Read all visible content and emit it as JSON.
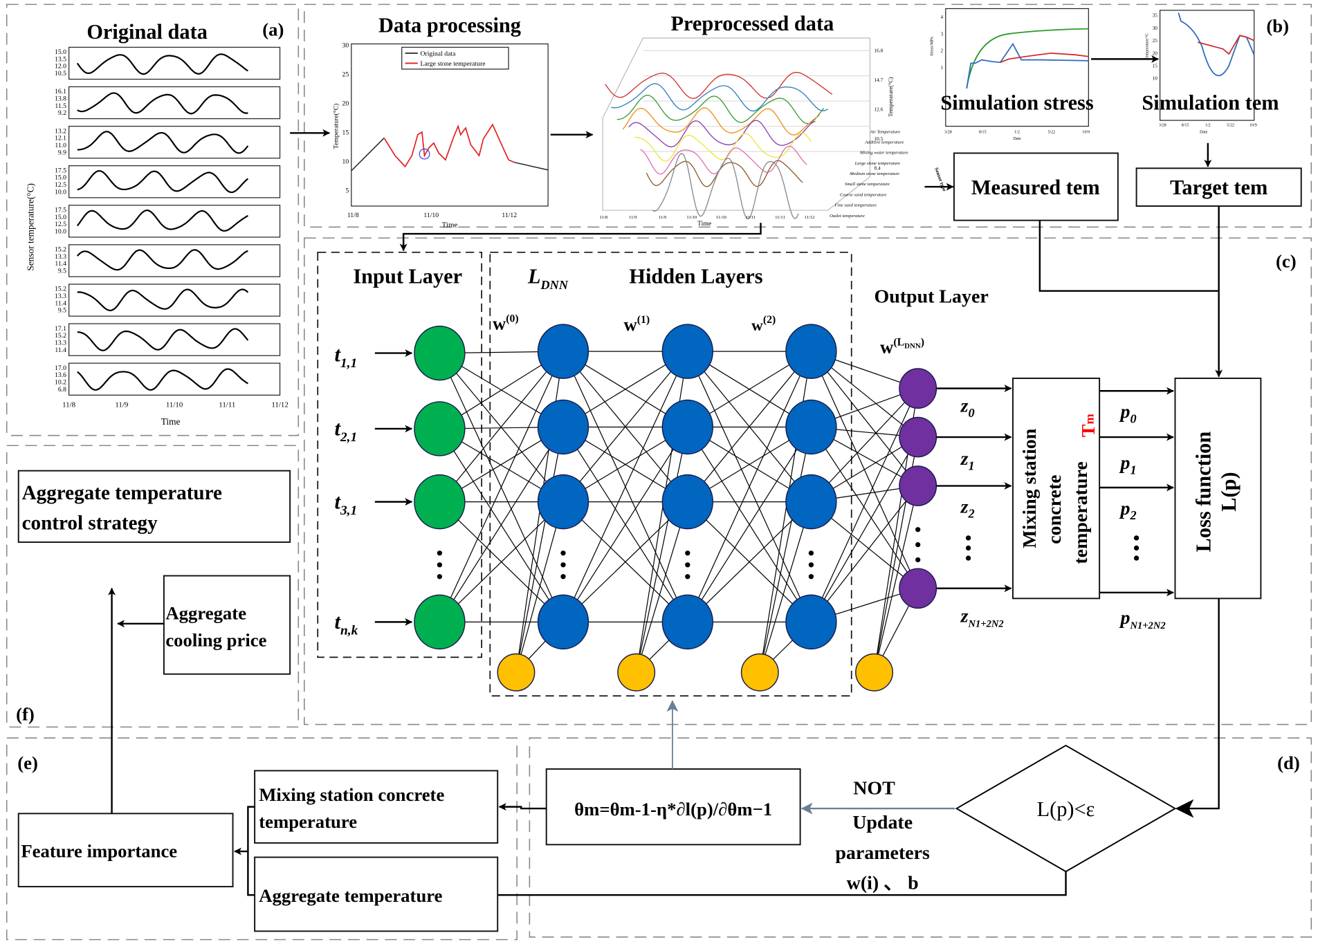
{
  "panels": {
    "a": "(a)",
    "b": "(b)",
    "c": "(c)",
    "d": "(d)",
    "e": "(e)",
    "f": "(f)"
  },
  "original_data": {
    "title": "Original data",
    "ylabel": "Sensor temperature(°C)",
    "xlabel": "Time",
    "xticks": [
      "11/8",
      "11/9",
      "11/10",
      "11/11",
      "11/12"
    ],
    "plots_yticks": [
      [
        "15.0",
        "13.5",
        "12.0",
        "10.5"
      ],
      [
        "16.1",
        "13.8",
        "11.5",
        "9.2"
      ],
      [
        "13.2",
        "12.1",
        "11.0",
        "9.9"
      ],
      [
        "17.5",
        "15.0",
        "12.5",
        "10.0"
      ],
      [
        "17.5",
        "15.0",
        "12.5",
        "10.0"
      ],
      [
        "15.2",
        "13.3",
        "11.4",
        "9.5"
      ],
      [
        "15.2",
        "13.3",
        "11.4",
        "9.5"
      ],
      [
        "17.1",
        "15.2",
        "13.3",
        "11.4"
      ],
      [
        "17.0",
        "13.6",
        "10.2",
        "6.8"
      ]
    ]
  },
  "data_processing": {
    "title": "Data processing",
    "ylabel": "Temperature(°C)",
    "xlabel": "Time",
    "yticks": [
      "30",
      "25",
      "20",
      "15",
      "10",
      "5"
    ],
    "xticks": [
      "11/8",
      "11/10",
      "11/12"
    ],
    "legend": [
      "Original data",
      "Large stone temperature"
    ],
    "colors": {
      "original": "#222222",
      "large_stone": "#e02020",
      "marker": "#3a3adf"
    }
  },
  "preprocessed": {
    "title": "Preprocessed data",
    "zlabel": "Temperature(°C)",
    "xlabel": "Time",
    "zticks": [
      "16.8",
      "14.7",
      "12.6",
      "10.5",
      "8.4"
    ],
    "xticks": [
      "11/8",
      "11/9",
      "11/9",
      "11/10",
      "11/10",
      "11/11",
      "11/11",
      "11/12"
    ],
    "sensor_axis": "Sensor type",
    "sensors": [
      "Air Temperature",
      "Additive temperature",
      "Mixing water temperature",
      "Large stone temperature",
      "Medium stone temperature",
      "Small stone temperature",
      "Coarse sand temperature",
      "Fine sand temperature",
      "Outlet temperature"
    ],
    "colors": [
      "#d03030",
      "#2f7fc0",
      "#3a9a3a",
      "#f08c1a",
      "#8b3fb0",
      "#e8e83a",
      "#e070b0",
      "#8a5a30",
      "#888888"
    ]
  },
  "simulation": {
    "stress_title": "Simulation stress",
    "stress_ylabel": "Stress/MPa",
    "stress_yticks": [
      "4",
      "3",
      "2",
      "1"
    ],
    "tem_title": "Simulation tem",
    "tem_ylabel": "Temperature/°C",
    "tem_yticks": [
      "35",
      "30",
      "25",
      "20",
      "15",
      "10"
    ],
    "xticks": [
      "3/28",
      "8/15",
      "1/2",
      "5/22",
      "10/9"
    ],
    "xlabel": "Date",
    "measured": "Measured tem",
    "target": "Target tem"
  },
  "network": {
    "input_layer": "Input Layer",
    "ldnn": "L",
    "ldnn_sub": "DNN",
    "hidden_layers": "Hidden Layers",
    "output_layer": "Output Layer",
    "weights": [
      {
        "base": "w",
        "sup": "(0)"
      },
      {
        "base": "w",
        "sup": "(1)"
      },
      {
        "base": "w",
        "sup": "(2)"
      },
      {
        "base": "w",
        "sup": "(L",
        "supsub": "DNN",
        "close": ")"
      }
    ],
    "inputs": [
      {
        "t": "t",
        "sub": "1,1"
      },
      {
        "t": "t",
        "sub": "2,1"
      },
      {
        "t": "t",
        "sub": "3,1"
      },
      {
        "t": "t",
        "sub": "n,k"
      }
    ],
    "z": [
      {
        "b": "z",
        "s": "0"
      },
      {
        "b": "z",
        "s": "1"
      },
      {
        "b": "z",
        "s": "2"
      },
      {
        "b": "z",
        "s": "N1+2N2"
      }
    ],
    "p": [
      {
        "b": "p",
        "s": "0"
      },
      {
        "b": "p",
        "s": "1"
      },
      {
        "b": "p",
        "s": "2"
      },
      {
        "b": "p",
        "s": "N1+2N2"
      }
    ],
    "mixing_box": [
      "Mixing station",
      "concrete",
      "temperature"
    ],
    "tm": "T",
    "tm_sub": "m",
    "loss_box": [
      "Loss function",
      "L(p)"
    ],
    "colors": {
      "input": "#00b050",
      "hidden": "#0066c0",
      "output": "#7030a0",
      "bias": "#ffc000",
      "tm": "#ff0000"
    }
  },
  "optimization": {
    "condition": "L(p)<ε",
    "not": "NOT",
    "update": [
      "Update",
      "parameters",
      "w(i) 、 b"
    ],
    "formula": "θm=θm-1-η*∂l(p)/∂θm−1",
    "arrow_color": "#6b7f99"
  },
  "analysis": {
    "mixing_temp": [
      "Mixing station concrete",
      "temperature"
    ],
    "aggregate_temp": "Aggregate temperature",
    "feature_importance": "Feature importance",
    "cooling_price": [
      "Aggregate",
      "cooling price"
    ],
    "control_strategy": [
      "Aggregate temperature",
      "control strategy"
    ]
  }
}
